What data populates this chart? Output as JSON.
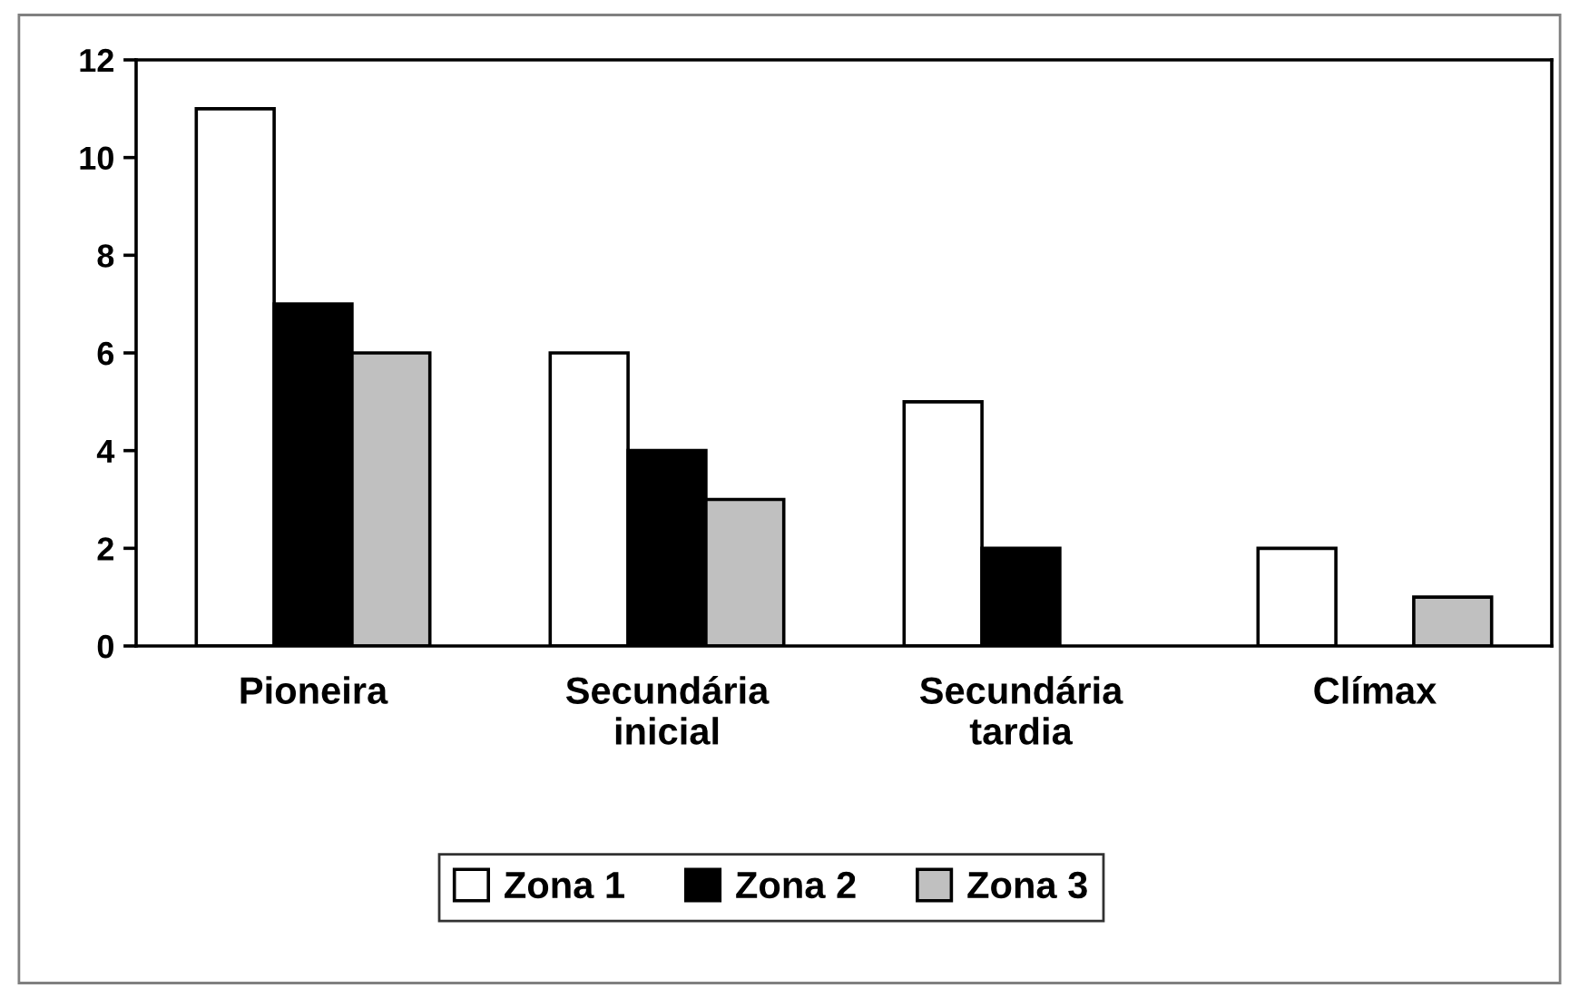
{
  "chart_data": {
    "type": "bar",
    "categories": [
      "Pioneira",
      "Secundária\ninicial",
      "Secundária\ntardia",
      "Clímax"
    ],
    "series": [
      {
        "name": "Zona 1",
        "color": "#ffffff",
        "values": [
          11,
          6,
          5,
          2
        ]
      },
      {
        "name": "Zona 2",
        "color": "#000000",
        "values": [
          7,
          4,
          2,
          null
        ]
      },
      {
        "name": "Zona 3",
        "color": "#c0c0c0",
        "values": [
          6,
          3,
          null,
          1
        ]
      }
    ],
    "ylim": [
      0,
      12
    ],
    "yticks": [
      0,
      2,
      4,
      6,
      8,
      10,
      12
    ],
    "grid": false,
    "legend": "bottom"
  }
}
